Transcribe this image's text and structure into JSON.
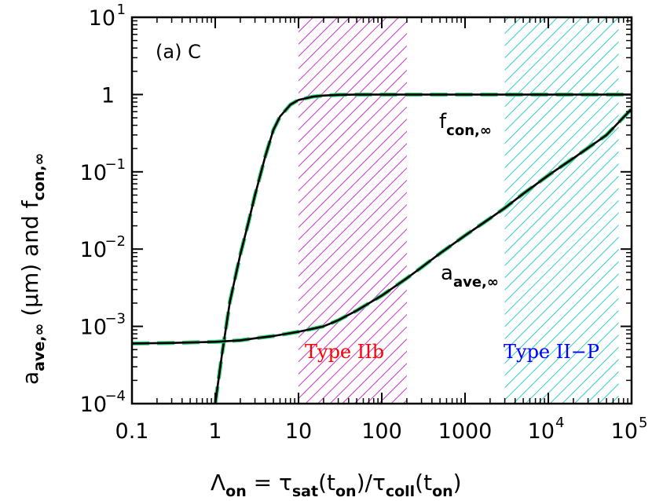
{
  "chart_data": {
    "type": "line",
    "panel_label": "(a) C",
    "xlabel": {
      "prefix": "Λ",
      "prefix_sub": "on",
      "rest": " = τ",
      "tau1_sub": "sat",
      "mid": "(t",
      "t1_sub": "on",
      "mid2": ")/τ",
      "tau2_sub": "coll",
      "mid3": "(t",
      "t2_sub": "on",
      "end": ")"
    },
    "ylabel": {
      "a": "a",
      "a_sub": "ave,∞",
      "middle": " (μm) and f",
      "f_sub": "con,∞"
    },
    "x_scale": "log",
    "y_scale": "log",
    "xlim": [
      0.1,
      100000
    ],
    "ylim": [
      0.0001,
      10
    ],
    "x_ticks": [
      {
        "value": 0.1,
        "label": "0.1",
        "exp": ""
      },
      {
        "value": 1,
        "label": "1",
        "exp": ""
      },
      {
        "value": 10,
        "label": "10",
        "exp": ""
      },
      {
        "value": 100,
        "label": "100",
        "exp": ""
      },
      {
        "value": 1000,
        "label": "1000",
        "exp": ""
      },
      {
        "value": 10000,
        "label": "10",
        "exp": "4"
      },
      {
        "value": 100000,
        "label": "10",
        "exp": "5"
      }
    ],
    "y_ticks": [
      {
        "value": 0.0001,
        "label": "10",
        "exp": "−4"
      },
      {
        "value": 0.001,
        "label": "10",
        "exp": "−3"
      },
      {
        "value": 0.01,
        "label": "10",
        "exp": "−2"
      },
      {
        "value": 0.1,
        "label": "10",
        "exp": "−1"
      },
      {
        "value": 1,
        "label": "1",
        "exp": ""
      },
      {
        "value": 10,
        "label": "10",
        "exp": "1"
      }
    ],
    "bands": [
      {
        "label": "Type IIb",
        "x_range": [
          10,
          200
        ],
        "hatch_color": "#cc33cc",
        "label_color": "#ff0000"
      },
      {
        "label": "Type II−P",
        "x_range": [
          3000,
          70000
        ],
        "hatch_color": "#33cccc",
        "label_color": "#0000ff"
      }
    ],
    "series": [
      {
        "label": "f",
        "label_sub": "con,∞",
        "color": "#000000",
        "dash_color": "#33cc77",
        "x": [
          1,
          1.2,
          1.5,
          2,
          2.5,
          3,
          4,
          5,
          6,
          8,
          10,
          15,
          20,
          30,
          50,
          100,
          1000,
          10000,
          100000
        ],
        "y": [
          0.0001,
          0.00042,
          0.0021,
          0.0085,
          0.022,
          0.05,
          0.16,
          0.35,
          0.52,
          0.74,
          0.85,
          0.94,
          0.97,
          0.99,
          1.0,
          1.0,
          1.0,
          1.0,
          1.0
        ]
      },
      {
        "label": "a",
        "label_sub": "ave,∞",
        "color": "#000000",
        "dash_color": "#33cc77",
        "x": [
          0.1,
          0.3,
          1,
          2,
          3,
          5,
          10,
          20,
          30,
          50,
          100,
          200,
          300,
          500,
          1000,
          2000,
          3000,
          5000,
          10000,
          20000,
          50000,
          100000
        ],
        "y": [
          0.0006,
          0.00061,
          0.00063,
          0.00066,
          0.0007,
          0.00075,
          0.00085,
          0.001,
          0.0012,
          0.0016,
          0.0025,
          0.0042,
          0.0058,
          0.0088,
          0.015,
          0.025,
          0.034,
          0.052,
          0.09,
          0.15,
          0.3,
          0.65
        ]
      }
    ]
  }
}
